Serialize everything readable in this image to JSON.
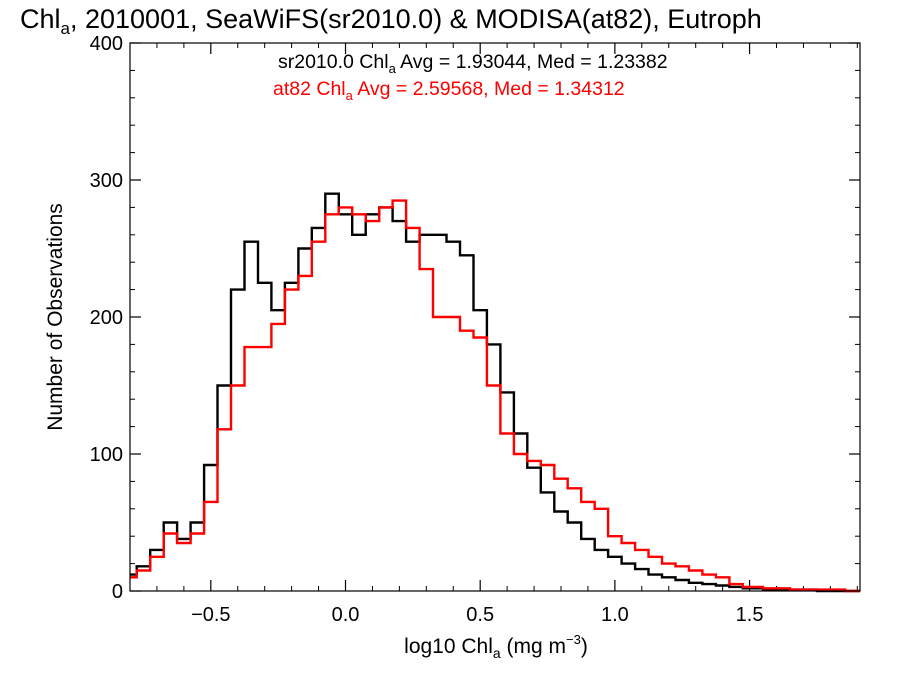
{
  "chart_data": {
    "type": "line",
    "title": {
      "main": "Chl",
      "sub": "a",
      "rest": ", 2010001, SeaWiFS(sr2010.0) & MODISA(at82), Eutroph"
    },
    "xlabel": {
      "main": "log10 Chl",
      "sub": "a",
      "rest": " (mg m",
      "sup": "−3",
      "end": ")"
    },
    "ylabel": "Number of Observations",
    "xlim": [
      -0.8,
      1.91
    ],
    "ylim": [
      0,
      400
    ],
    "x_ticks": [
      -0.5,
      0.0,
      0.5,
      1.0,
      1.5
    ],
    "x_tick_labels": [
      "−0.5",
      "0.0",
      "0.5",
      "1.0",
      "1.5"
    ],
    "y_ticks": [
      0,
      100,
      200,
      300,
      400
    ],
    "y_tick_labels": [
      "0",
      "100",
      "200",
      "300",
      "400"
    ],
    "x_minor_step": 0.1,
    "y_minor_step": 20,
    "grid": false,
    "legend_placement": "top-center",
    "series": [
      {
        "legend": {
          "main": "sr2010.0 Chl",
          "sub": "a",
          "rest": " Avg = 1.93044, Med = 1.23382"
        },
        "color": "#000000",
        "x": [
          -0.8,
          -0.75,
          -0.7,
          -0.65,
          -0.6,
          -0.55,
          -0.5,
          -0.45,
          -0.4,
          -0.35,
          -0.3,
          -0.25,
          -0.2,
          -0.15,
          -0.1,
          -0.05,
          0.0,
          0.05,
          0.1,
          0.15,
          0.2,
          0.25,
          0.3,
          0.35,
          0.4,
          0.45,
          0.5,
          0.55,
          0.6,
          0.65,
          0.7,
          0.75,
          0.8,
          0.85,
          0.9,
          0.95,
          1.0,
          1.05,
          1.1,
          1.15,
          1.2,
          1.25,
          1.3,
          1.35,
          1.4,
          1.45,
          1.5,
          1.6,
          1.7,
          1.8,
          1.91
        ],
        "y": [
          12,
          18,
          30,
          50,
          38,
          50,
          92,
          150,
          220,
          255,
          225,
          205,
          225,
          250,
          265,
          290,
          275,
          260,
          275,
          280,
          270,
          255,
          260,
          260,
          255,
          245,
          205,
          180,
          145,
          115,
          90,
          72,
          58,
          50,
          38,
          30,
          25,
          20,
          16,
          12,
          10,
          8,
          6,
          5,
          4,
          3,
          2,
          1,
          1,
          0,
          0
        ]
      },
      {
        "legend": {
          "main": "at82 Chl",
          "sub": "a",
          "rest": " Avg = 2.59568, Med = 1.34312"
        },
        "color": "#ff0000",
        "x": [
          -0.8,
          -0.75,
          -0.7,
          -0.65,
          -0.6,
          -0.55,
          -0.5,
          -0.45,
          -0.4,
          -0.35,
          -0.3,
          -0.25,
          -0.2,
          -0.15,
          -0.1,
          -0.05,
          0.0,
          0.05,
          0.1,
          0.15,
          0.2,
          0.25,
          0.3,
          0.35,
          0.4,
          0.45,
          0.5,
          0.55,
          0.6,
          0.65,
          0.7,
          0.75,
          0.8,
          0.85,
          0.9,
          0.95,
          1.0,
          1.05,
          1.1,
          1.15,
          1.2,
          1.25,
          1.3,
          1.35,
          1.4,
          1.45,
          1.5,
          1.6,
          1.7,
          1.8,
          1.91
        ],
        "y": [
          10,
          15,
          25,
          42,
          35,
          42,
          65,
          118,
          150,
          178,
          178,
          195,
          220,
          230,
          255,
          275,
          280,
          275,
          270,
          280,
          285,
          265,
          235,
          200,
          200,
          190,
          185,
          150,
          115,
          100,
          95,
          92,
          82,
          75,
          65,
          60,
          40,
          35,
          30,
          25,
          20,
          18,
          15,
          12,
          10,
          5,
          3,
          2,
          1,
          1,
          0
        ]
      }
    ]
  }
}
